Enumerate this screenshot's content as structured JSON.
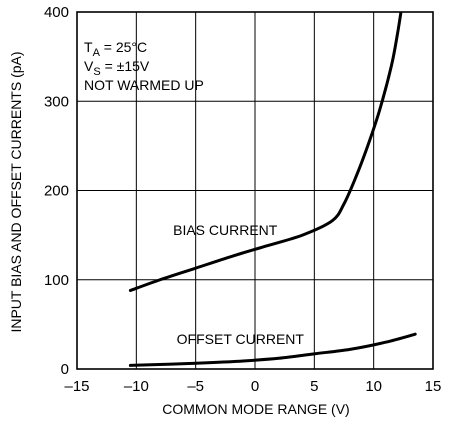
{
  "chart_data": {
    "type": "line",
    "xlabel": "COMMON MODE RANGE (V)",
    "ylabel": "INPUT BIAS AND OFFSET CURRENTS (pA)",
    "xlim": [
      -15,
      15
    ],
    "ylim": [
      0,
      400
    ],
    "x_ticks": [
      -15,
      -10,
      -5,
      0,
      5,
      10,
      15
    ],
    "y_ticks": [
      0,
      100,
      200,
      300,
      400
    ],
    "x_tick_labels": [
      "–15",
      "–10",
      "–5",
      "0",
      "5",
      "10",
      "15"
    ],
    "y_tick_labels": [
      "0",
      "100",
      "200",
      "300",
      "400"
    ],
    "grid": true,
    "annotations": {
      "ta_main": "T",
      "ta_sub": "A",
      "ta_rest": " = 25°C",
      "vs_main": "V",
      "vs_sub": "S",
      "vs_rest": " = ±15V",
      "condition": "NOT WARMED UP"
    },
    "series": [
      {
        "name": "BIAS CURRENT",
        "x": [
          -10.5,
          -8,
          -5,
          -2,
          1,
          4,
          6.5,
          7.5,
          8.5,
          9.5,
          10.5,
          11.5,
          12,
          12.3
        ],
        "y": [
          88,
          100,
          113,
          126,
          138,
          150,
          166,
          185,
          215,
          250,
          290,
          340,
          375,
          400
        ]
      },
      {
        "name": "OFFSET CURRENT",
        "x": [
          -10.5,
          -7,
          -4,
          -1,
          2,
          5,
          8,
          11,
          13.5
        ],
        "y": [
          4,
          5.5,
          7,
          9,
          12,
          17,
          22,
          30,
          39
        ]
      }
    ]
  }
}
